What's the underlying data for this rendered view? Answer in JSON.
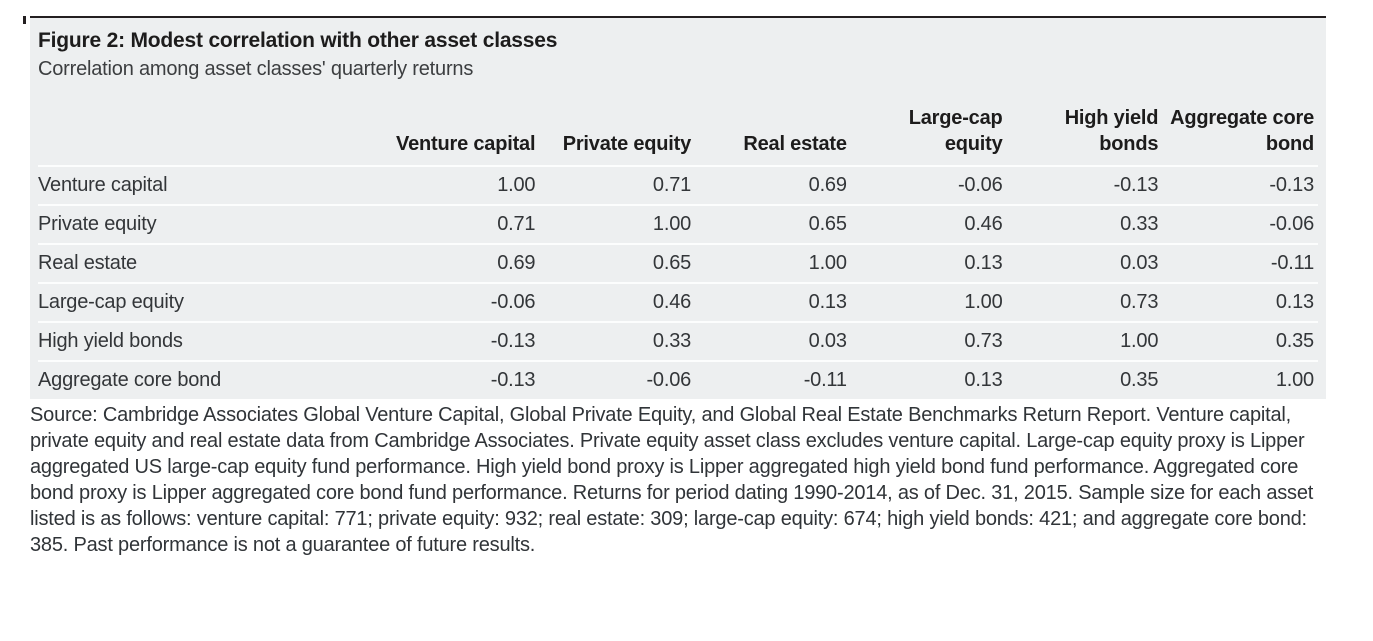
{
  "chart_data": {
    "type": "table",
    "title": "Figure 2: Modest correlation with other asset classes",
    "subtitle": "Correlation among asset classes' quarterly returns",
    "columns": [
      "Venture capital",
      "Private equity",
      "Real estate",
      "Large-cap equity",
      "High yield bonds",
      "Aggregate core bond"
    ],
    "rows": [
      {
        "label": "Venture capital",
        "values": [
          "1.00",
          "0.71",
          "0.69",
          "-0.06",
          "-0.13",
          "-0.13"
        ]
      },
      {
        "label": "Private equity",
        "values": [
          "0.71",
          "1.00",
          "0.65",
          "0.46",
          "0.33",
          "-0.06"
        ]
      },
      {
        "label": "Real estate",
        "values": [
          "0.69",
          "0.65",
          "1.00",
          "0.13",
          "0.03",
          "-0.11"
        ]
      },
      {
        "label": "Large-cap equity",
        "values": [
          "-0.06",
          "0.46",
          "0.13",
          "1.00",
          "0.73",
          "0.13"
        ]
      },
      {
        "label": "High yield bonds",
        "values": [
          "-0.13",
          "0.33",
          "0.03",
          "0.73",
          "1.00",
          "0.35"
        ]
      },
      {
        "label": "Aggregate core bond",
        "values": [
          "-0.13",
          "-0.06",
          "-0.11",
          "0.13",
          "0.35",
          "1.00"
        ]
      }
    ],
    "source_note": "Source: Cambridge Associates Global Venture Capital, Global Private Equity, and Global Real Estate Benchmarks Return Report. Venture capital, private equity and real estate data from Cambridge Associates. Private equity asset class excludes venture capital. Large-cap equity proxy is Lipper aggregated US large-cap equity fund performance. High yield bond proxy is Lipper aggregated high yield bond fund performance. Aggregated core bond proxy is Lipper aggregated core bond fund performance. Returns for period dating 1990-2014, as of Dec. 31, 2015. Sample size for each asset listed is as follows: venture capital: 771; private equity: 932; real estate: 309; large-cap equity: 674; high yield bonds: 421; and aggregate core bond: 385. Past performance is not a guarantee of future results."
  },
  "colors": {
    "panel_background": "#edeff0",
    "top_rule": "#231f20",
    "row_separator": "#fcfdfd",
    "title_text": "#1d1c1c",
    "body_text": "#333639"
  }
}
